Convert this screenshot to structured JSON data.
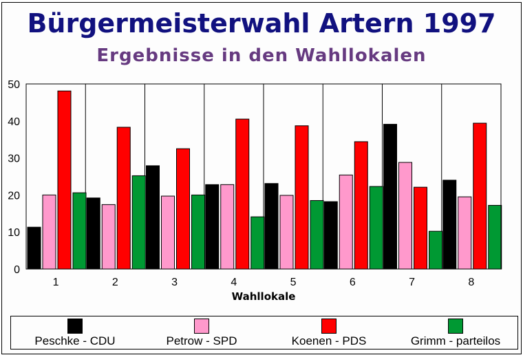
{
  "chart_data": {
    "type": "bar",
    "title": "Bürgermeisterwahl Artern 1997",
    "subtitle": "Ergebnisse in den Wahllokalen",
    "xlabel": "Wahllokale",
    "ylabel": "",
    "categories": [
      "1",
      "2",
      "3",
      "4",
      "5",
      "6",
      "7",
      "8"
    ],
    "ylim": [
      0,
      50
    ],
    "yticks": [
      "0",
      "10",
      "20",
      "30",
      "40",
      "50"
    ],
    "grid": "vertical separators between categories",
    "legend_position": "bottom",
    "series": [
      {
        "name": "Peschke - CDU",
        "color": "#000000",
        "values": [
          11.3,
          19.2,
          27.9,
          22.8,
          23.1,
          18.2,
          39.1,
          24.0
        ]
      },
      {
        "name": "Petrow - SPD",
        "color": "#ff99cc",
        "values": [
          20.0,
          17.4,
          19.7,
          22.8,
          19.9,
          25.4,
          28.8,
          19.5
        ]
      },
      {
        "name": "Koenen - PDS",
        "color": "#ff0000",
        "values": [
          48.1,
          38.3,
          32.5,
          40.5,
          38.7,
          34.4,
          22.1,
          39.4
        ]
      },
      {
        "name": "Grimm - parteilos",
        "color": "#009933",
        "values": [
          20.6,
          25.2,
          20.0,
          14.1,
          18.5,
          22.3,
          10.2,
          17.2
        ]
      }
    ]
  }
}
